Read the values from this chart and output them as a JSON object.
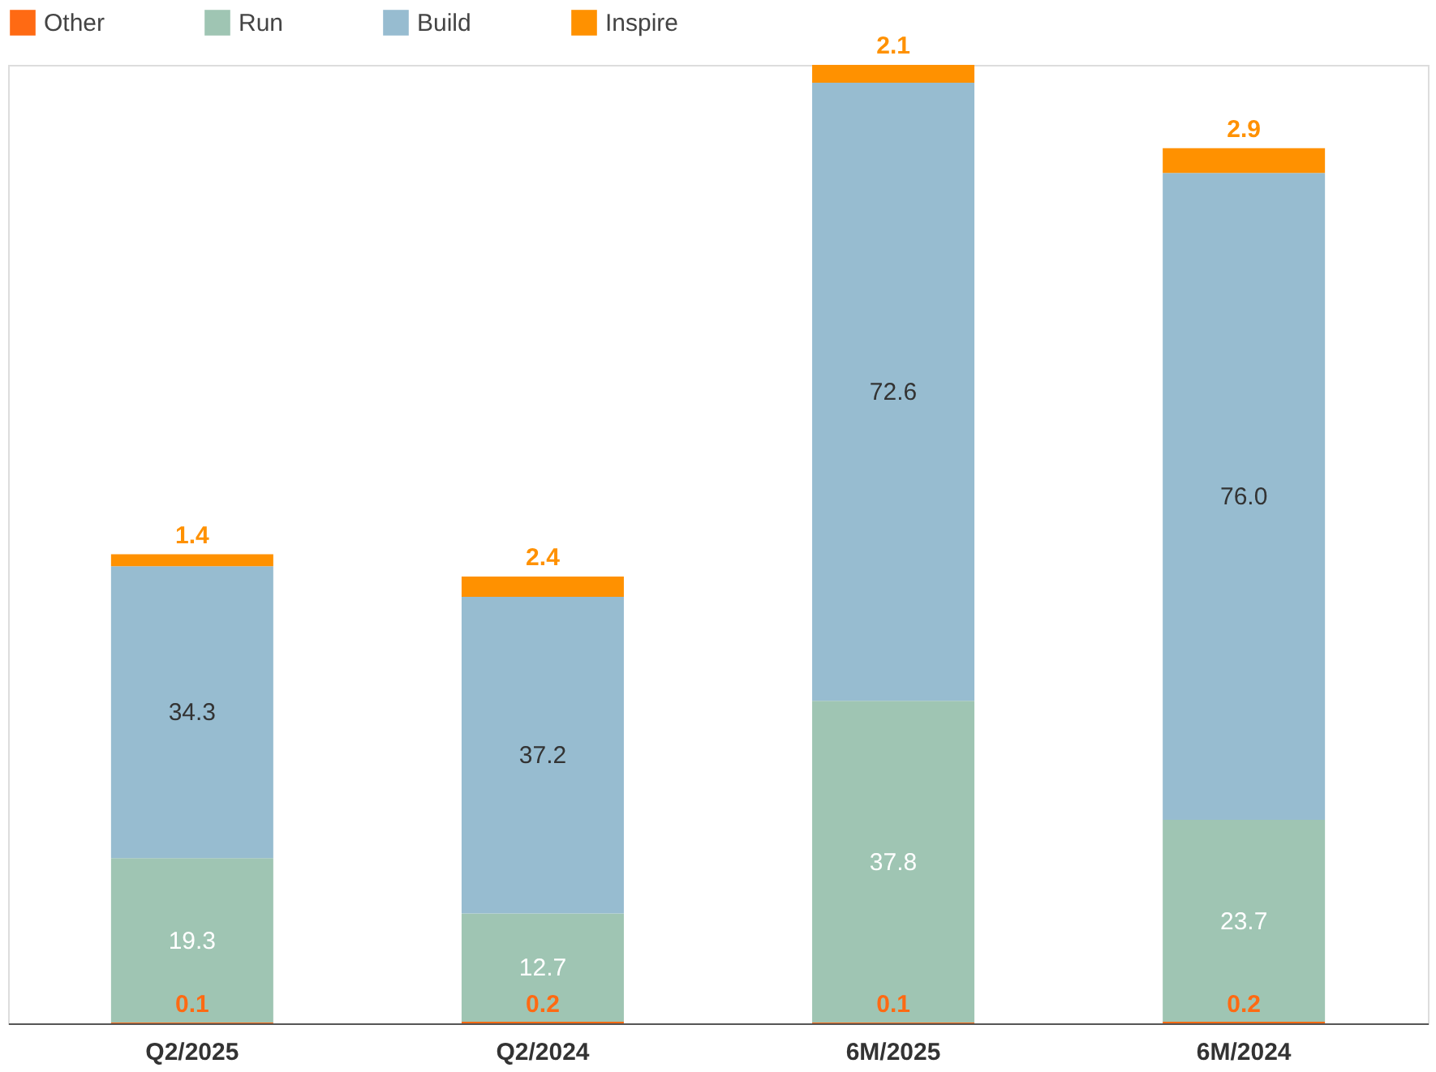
{
  "chart_data": {
    "type": "bar",
    "stacked": true,
    "categories": [
      "Q2/2025",
      "Q2/2024",
      "6M/2025",
      "6M/2024"
    ],
    "series": [
      {
        "name": "Other",
        "color": "#ff6a13",
        "values": [
          0.1,
          0.2,
          0.1,
          0.2
        ]
      },
      {
        "name": "Run",
        "color": "#9fc5b3",
        "values": [
          19.3,
          12.7,
          37.8,
          23.7
        ]
      },
      {
        "name": "Build",
        "color": "#97bcd0",
        "values": [
          34.3,
          37.2,
          72.6,
          76.0
        ],
        "value_labels": [
          "34.3",
          "37.2",
          "72.6",
          "76.0"
        ]
      },
      {
        "name": "Inspire",
        "color": "#ff9100",
        "values": [
          1.4,
          2.4,
          2.1,
          2.9
        ]
      }
    ],
    "data_labels": true,
    "legend": "top left",
    "grid": false,
    "tick_labels": "x"
  }
}
